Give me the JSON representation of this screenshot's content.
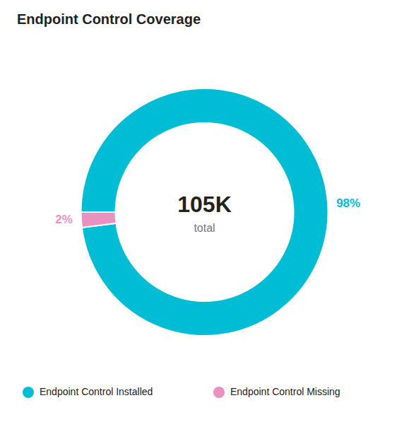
{
  "chart_data": {
    "type": "donut",
    "title": "Endpoint Control Coverage",
    "categories": [
      "Endpoint Control Installed",
      "Endpoint Control Missing"
    ],
    "values": [
      98,
      2
    ],
    "value_labels": [
      "98%",
      "2%"
    ],
    "colors": [
      "#00bcd4",
      "#e991c0"
    ],
    "data_labels": true,
    "legend": "bottom",
    "annotations": [
      "105K",
      "total"
    ]
  }
}
